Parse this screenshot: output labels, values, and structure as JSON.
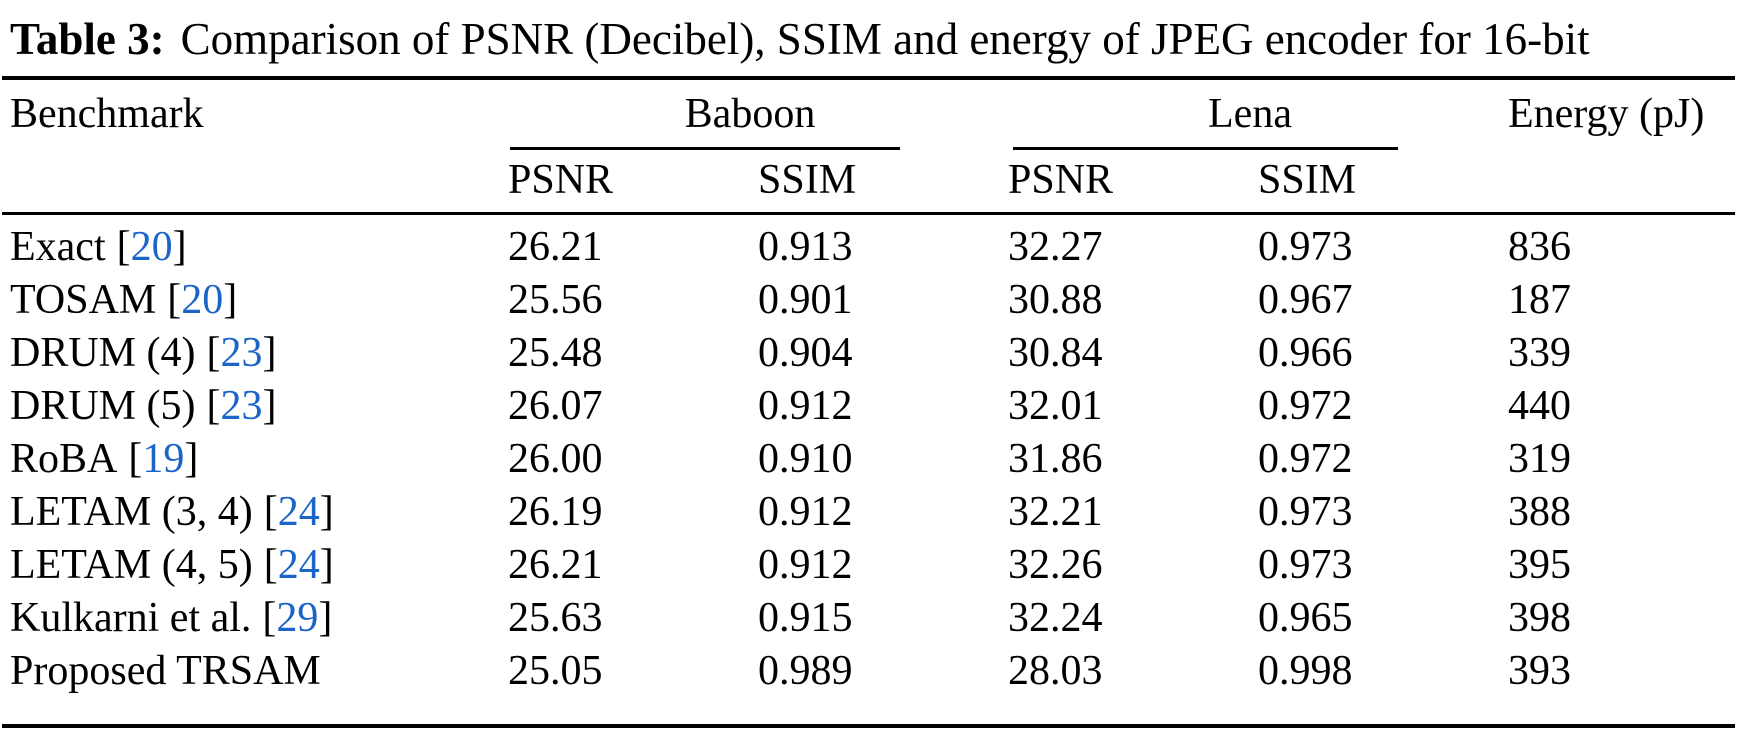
{
  "caption": {
    "label": "Table 3:",
    "text": "Comparison of PSNR (Decibel), SSIM and energy of JPEG encoder for 16-bit"
  },
  "colors": {
    "text": "#000000",
    "citation_blue": "#1b64c8",
    "background": "#ffffff"
  },
  "table": {
    "headers": {
      "benchmark": "Benchmark",
      "group_baboon": "Baboon",
      "group_lena": "Lena",
      "energy": "Energy (pJ)",
      "sub": [
        "PSNR",
        "SSIM",
        "PSNR",
        "SSIM"
      ]
    },
    "brackets": {
      "open": "[",
      "close": "]"
    },
    "rows": [
      {
        "name": "Exact",
        "ref": "20",
        "baboon_psnr": "26.21",
        "baboon_ssim": "0.913",
        "lena_psnr": "32.27",
        "lena_ssim": "0.973",
        "energy": "836"
      },
      {
        "name": "TOSAM",
        "ref": "20",
        "baboon_psnr": "25.56",
        "baboon_ssim": "0.901",
        "lena_psnr": "30.88",
        "lena_ssim": "0.967",
        "energy": "187"
      },
      {
        "name": "DRUM (4)",
        "ref": "23",
        "baboon_psnr": "25.48",
        "baboon_ssim": "0.904",
        "lena_psnr": "30.84",
        "lena_ssim": "0.966",
        "energy": "339"
      },
      {
        "name": "DRUM (5)",
        "ref": "23",
        "baboon_psnr": "26.07",
        "baboon_ssim": "0.912",
        "lena_psnr": "32.01",
        "lena_ssim": "0.972",
        "energy": "440"
      },
      {
        "name": "RoBA",
        "ref": "19",
        "baboon_psnr": "26.00",
        "baboon_ssim": "0.910",
        "lena_psnr": "31.86",
        "lena_ssim": "0.972",
        "energy": "319"
      },
      {
        "name": "LETAM (3, 4)",
        "ref": "24",
        "baboon_psnr": "26.19",
        "baboon_ssim": "0.912",
        "lena_psnr": "32.21",
        "lena_ssim": "0.973",
        "energy": "388"
      },
      {
        "name": "LETAM (4, 5)",
        "ref": "24",
        "baboon_psnr": "26.21",
        "baboon_ssim": "0.912",
        "lena_psnr": "32.26",
        "lena_ssim": "0.973",
        "energy": "395"
      },
      {
        "name": "Kulkarni et al.",
        "ref": "29",
        "baboon_psnr": "25.63",
        "baboon_ssim": "0.915",
        "lena_psnr": "32.24",
        "lena_ssim": "0.965",
        "energy": "398"
      },
      {
        "name": "Proposed TRSAM",
        "ref": null,
        "baboon_psnr": "25.05",
        "baboon_ssim": "0.989",
        "lena_psnr": "28.03",
        "lena_ssim": "0.998",
        "energy": "393"
      }
    ]
  }
}
